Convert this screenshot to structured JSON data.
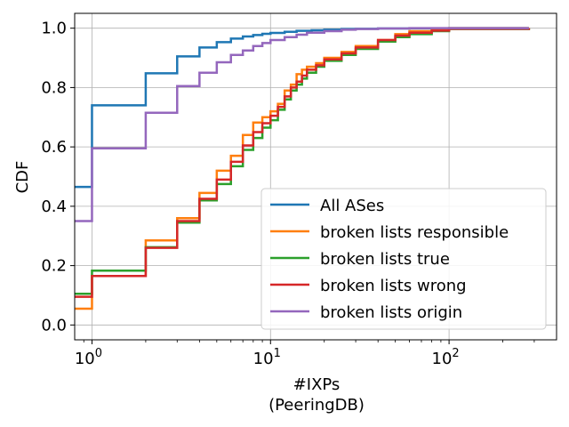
{
  "chart_data": {
    "type": "line",
    "title": "",
    "xlabel": "#IXPs",
    "xlabel_sub": "(PeeringDB)",
    "ylabel": "CDF",
    "xscale": "log",
    "xlim": [
      0.8,
      400
    ],
    "ylim": [
      -0.05,
      1.05
    ],
    "grid": true,
    "legend_position": "lower-right",
    "x_ticks": [
      {
        "value": 1,
        "base": "10",
        "exp": "0"
      },
      {
        "value": 10,
        "base": "10",
        "exp": "1"
      },
      {
        "value": 100,
        "base": "10",
        "exp": "2"
      }
    ],
    "y_ticks": [
      {
        "value": 0.0,
        "label": "0.0"
      },
      {
        "value": 0.2,
        "label": "0.2"
      },
      {
        "value": 0.4,
        "label": "0.4"
      },
      {
        "value": 0.6,
        "label": "0.6"
      },
      {
        "value": 0.8,
        "label": "0.8"
      },
      {
        "value": 1.0,
        "label": "1.0"
      }
    ],
    "series": [
      {
        "name": "All ASes",
        "color": "#1f77b4",
        "points": [
          [
            0.8,
            0.465
          ],
          [
            1,
            0.74
          ],
          [
            2,
            0.848
          ],
          [
            3,
            0.905
          ],
          [
            4,
            0.935
          ],
          [
            5,
            0.953
          ],
          [
            6,
            0.965
          ],
          [
            7,
            0.972
          ],
          [
            8,
            0.977
          ],
          [
            9,
            0.981
          ],
          [
            10,
            0.984
          ],
          [
            12,
            0.988
          ],
          [
            14,
            0.991
          ],
          [
            17,
            0.993
          ],
          [
            20,
            0.995
          ],
          [
            25,
            0.997
          ],
          [
            30,
            0.998
          ],
          [
            40,
            0.999
          ],
          [
            60,
            0.9995
          ],
          [
            100,
            1.0
          ],
          [
            280,
            1.0
          ]
        ]
      },
      {
        "name": "broken lists responsible",
        "color": "#ff7f0e",
        "points": [
          [
            0.8,
            0.055
          ],
          [
            1,
            0.165
          ],
          [
            2,
            0.285
          ],
          [
            3,
            0.36
          ],
          [
            4,
            0.445
          ],
          [
            5,
            0.52
          ],
          [
            6,
            0.57
          ],
          [
            7,
            0.64
          ],
          [
            8,
            0.682
          ],
          [
            9,
            0.7
          ],
          [
            10,
            0.72
          ],
          [
            11,
            0.745
          ],
          [
            12,
            0.79
          ],
          [
            13,
            0.81
          ],
          [
            14,
            0.845
          ],
          [
            15,
            0.86
          ],
          [
            16,
            0.87
          ],
          [
            18,
            0.882
          ],
          [
            20,
            0.9
          ],
          [
            25,
            0.92
          ],
          [
            30,
            0.94
          ],
          [
            40,
            0.96
          ],
          [
            50,
            0.98
          ],
          [
            60,
            0.99
          ],
          [
            80,
            0.995
          ],
          [
            100,
            1.0
          ],
          [
            280,
            1.0
          ]
        ]
      },
      {
        "name": "broken lists true",
        "color": "#2ca02c",
        "points": [
          [
            0.8,
            0.105
          ],
          [
            1,
            0.183
          ],
          [
            2,
            0.262
          ],
          [
            3,
            0.345
          ],
          [
            4,
            0.42
          ],
          [
            5,
            0.475
          ],
          [
            6,
            0.535
          ],
          [
            7,
            0.59
          ],
          [
            8,
            0.63
          ],
          [
            9,
            0.665
          ],
          [
            10,
            0.69
          ],
          [
            11,
            0.725
          ],
          [
            12,
            0.76
          ],
          [
            13,
            0.79
          ],
          [
            14,
            0.81
          ],
          [
            15,
            0.83
          ],
          [
            16,
            0.85
          ],
          [
            18,
            0.87
          ],
          [
            20,
            0.89
          ],
          [
            25,
            0.91
          ],
          [
            30,
            0.93
          ],
          [
            40,
            0.955
          ],
          [
            50,
            0.97
          ],
          [
            60,
            0.98
          ],
          [
            80,
            0.99
          ],
          [
            100,
            0.997
          ],
          [
            280,
            1.0
          ]
        ]
      },
      {
        "name": "broken lists wrong",
        "color": "#d62728",
        "points": [
          [
            0.8,
            0.095
          ],
          [
            1,
            0.165
          ],
          [
            2,
            0.26
          ],
          [
            3,
            0.35
          ],
          [
            4,
            0.425
          ],
          [
            5,
            0.49
          ],
          [
            6,
            0.55
          ],
          [
            7,
            0.605
          ],
          [
            8,
            0.65
          ],
          [
            9,
            0.68
          ],
          [
            10,
            0.705
          ],
          [
            11,
            0.735
          ],
          [
            12,
            0.77
          ],
          [
            13,
            0.8
          ],
          [
            14,
            0.82
          ],
          [
            15,
            0.84
          ],
          [
            16,
            0.86
          ],
          [
            18,
            0.875
          ],
          [
            20,
            0.895
          ],
          [
            25,
            0.915
          ],
          [
            30,
            0.935
          ],
          [
            40,
            0.96
          ],
          [
            50,
            0.975
          ],
          [
            60,
            0.985
          ],
          [
            80,
            0.992
          ],
          [
            100,
            0.998
          ],
          [
            280,
            1.0
          ]
        ]
      },
      {
        "name": "broken lists origin",
        "color": "#9467bd",
        "points": [
          [
            0.8,
            0.35
          ],
          [
            1,
            0.595
          ],
          [
            2,
            0.715
          ],
          [
            3,
            0.805
          ],
          [
            4,
            0.85
          ],
          [
            5,
            0.885
          ],
          [
            6,
            0.91
          ],
          [
            7,
            0.925
          ],
          [
            8,
            0.94
          ],
          [
            9,
            0.95
          ],
          [
            10,
            0.96
          ],
          [
            12,
            0.97
          ],
          [
            14,
            0.978
          ],
          [
            16,
            0.985
          ],
          [
            20,
            0.99
          ],
          [
            25,
            0.995
          ],
          [
            30,
            0.997
          ],
          [
            40,
            0.999
          ],
          [
            60,
            1.0
          ],
          [
            280,
            1.0
          ]
        ]
      }
    ]
  }
}
